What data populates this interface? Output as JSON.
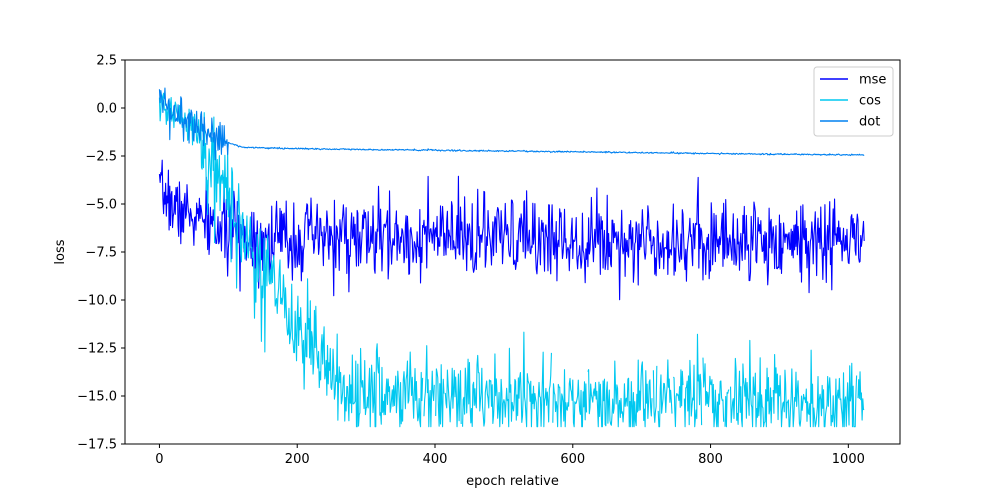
{
  "chart_data": {
    "type": "line",
    "xlabel": "epoch relative",
    "ylabel": "loss",
    "xlim": [
      -50,
      1075
    ],
    "ylim": [
      -17.5,
      2.5
    ],
    "xticks": [
      0,
      200,
      400,
      600,
      800,
      1000
    ],
    "yticks": [
      2.5,
      0.0,
      -2.5,
      -5.0,
      -7.5,
      -10.0,
      -12.5,
      -15.0,
      -17.5
    ],
    "grid": false,
    "legend_position": "top-right",
    "n_points": 1024,
    "series": [
      {
        "name": "mse",
        "color": "#0000ff",
        "summary": "Noisy series starting near -5 (range -6.8 to -3.7 in first ~30 epochs), drifting down to about -6.5 by epoch 100 and then fluctuating around -6.8 (roughly -10.5 to -3.8) through epoch 1023.",
        "points": [
          [
            0,
            -4.6
          ],
          [
            10,
            -4.5
          ],
          [
            20,
            -5.2
          ],
          [
            40,
            -5.5
          ],
          [
            60,
            -5.9
          ],
          [
            80,
            -6.2
          ],
          [
            100,
            -6.5
          ],
          [
            150,
            -6.8
          ],
          [
            200,
            -6.8
          ],
          [
            400,
            -6.8
          ],
          [
            600,
            -6.8
          ],
          [
            800,
            -6.9
          ],
          [
            1000,
            -6.9
          ],
          [
            1023,
            -7.0
          ]
        ]
      },
      {
        "name": "cos",
        "color": "#00c8f0",
        "summary": "Starts near 0 with large noise, falls sharply between epochs ~70 and ~200 from about -2 to -11, reaches about -15 by epoch 280 and fluctuates between -16.6 and -12 thereafter, clipped at about -16.6; later part has gaps.",
        "points": [
          [
            0,
            0.2
          ],
          [
            30,
            -0.5
          ],
          [
            60,
            -1.5
          ],
          [
            80,
            -3.0
          ],
          [
            100,
            -5.0
          ],
          [
            120,
            -6.5
          ],
          [
            150,
            -8.5
          ],
          [
            180,
            -10.5
          ],
          [
            200,
            -11.5
          ],
          [
            230,
            -13.0
          ],
          [
            260,
            -14.3
          ],
          [
            300,
            -15.0
          ],
          [
            400,
            -15.0
          ],
          [
            600,
            -15.2
          ],
          [
            800,
            -15.2
          ],
          [
            1023,
            -15.3
          ]
        ]
      },
      {
        "name": "dot",
        "color": "#0080f0",
        "summary": "Starts near 0 with noise until epoch ~100, then drops to about -2.1 and becomes smooth, declining slowly and almost linearly to about -2.45 at epoch 1023.",
        "points": [
          [
            0,
            0.2
          ],
          [
            20,
            -0.3
          ],
          [
            40,
            -0.7
          ],
          [
            60,
            -1.0
          ],
          [
            80,
            -1.4
          ],
          [
            100,
            -1.8
          ],
          [
            120,
            -2.05
          ],
          [
            200,
            -2.12
          ],
          [
            400,
            -2.2
          ],
          [
            600,
            -2.28
          ],
          [
            800,
            -2.37
          ],
          [
            1023,
            -2.45
          ]
        ]
      }
    ]
  }
}
